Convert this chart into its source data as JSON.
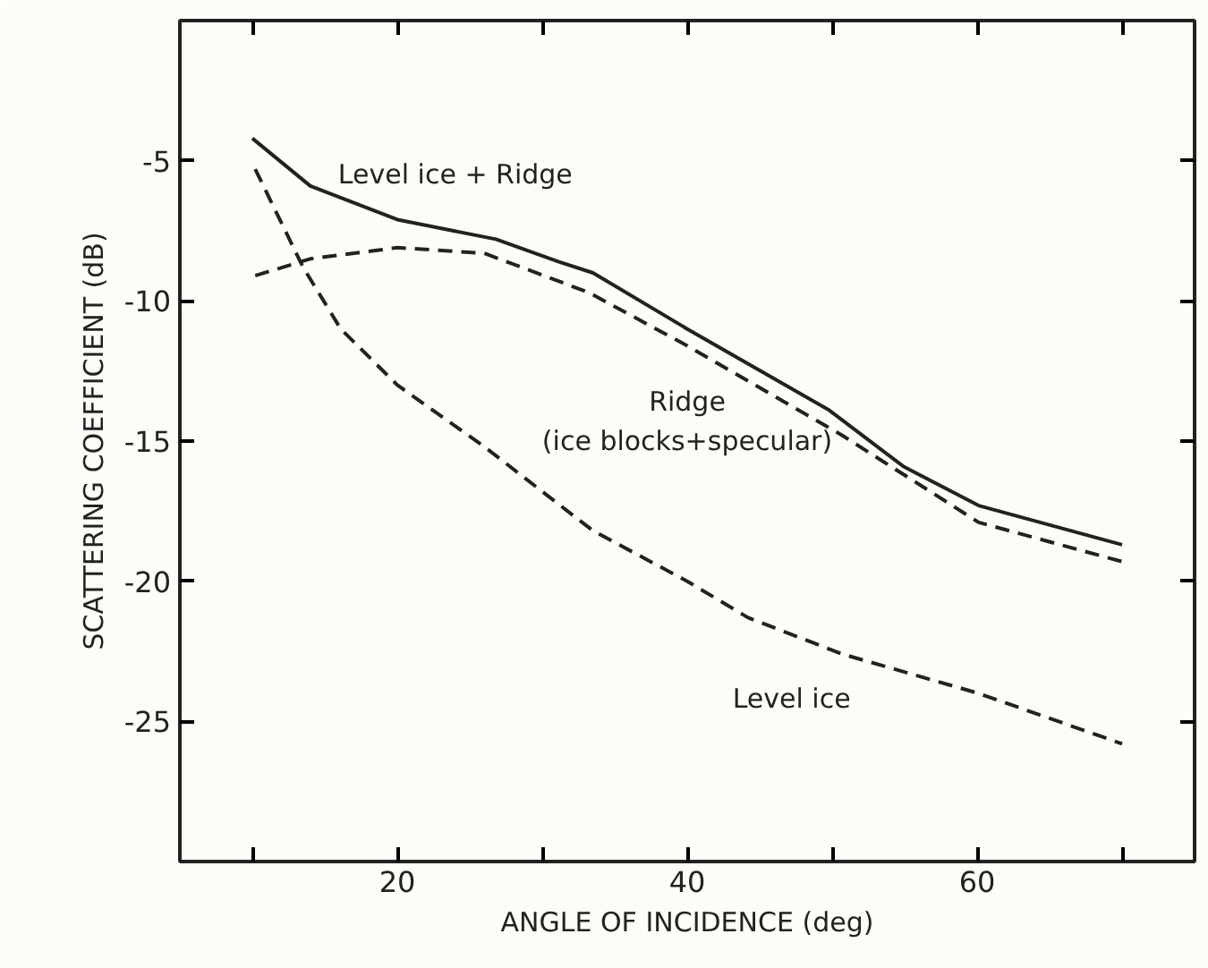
{
  "chart_data": {
    "type": "line",
    "xlabel": "ANGLE OF INCIDENCE (deg)",
    "ylabel": "SCATTERING COEFFICIENT (dB)",
    "xlim": [
      5,
      75
    ],
    "ylim": [
      -30,
      0
    ],
    "xticks": [
      {
        "value": 10,
        "label": null
      },
      20,
      {
        "value": 30,
        "label": null
      },
      40,
      {
        "value": 50,
        "label": null
      },
      60,
      {
        "value": 70,
        "label": null
      }
    ],
    "yticks": [
      -25,
      -20,
      -15,
      -10,
      -5
    ],
    "grid": false,
    "legend": false,
    "marker": "none",
    "series": [
      {
        "name": "Level ice + Ridge",
        "color": "#222222",
        "line_style": "solid",
        "x": [
          10,
          14,
          20,
          26.8,
          31.1,
          33.5,
          40,
          49.8,
          54.9,
          60.1,
          70
        ],
        "values": [
          -4.2,
          -5.9,
          -7.1,
          -7.8,
          -8.6,
          -9.0,
          -11.0,
          -13.9,
          -15.9,
          -17.3,
          -18.7
        ]
      },
      {
        "name": "Ridge\n(ice blocks+specular)",
        "color": "#222222",
        "line_style": "dashed",
        "x": [
          10.2,
          14,
          20,
          26,
          33.2,
          40,
          50.7,
          60.1,
          70
        ],
        "values": [
          -9.1,
          -8.5,
          -8.1,
          -8.3,
          -9.7,
          -11.6,
          -14.8,
          -17.9,
          -19.3
        ]
      },
      {
        "name": "Level ice",
        "color": "#222222",
        "line_style": "dashed",
        "x": [
          10.2,
          13.5,
          16.1,
          20,
          26,
          33.5,
          40,
          44.2,
          50.7,
          60.1,
          70
        ],
        "values": [
          -5.3,
          -8.8,
          -11.0,
          -13.0,
          -15.2,
          -18.2,
          -20.0,
          -21.3,
          -22.6,
          -24.0,
          -25.8
        ]
      }
    ]
  }
}
